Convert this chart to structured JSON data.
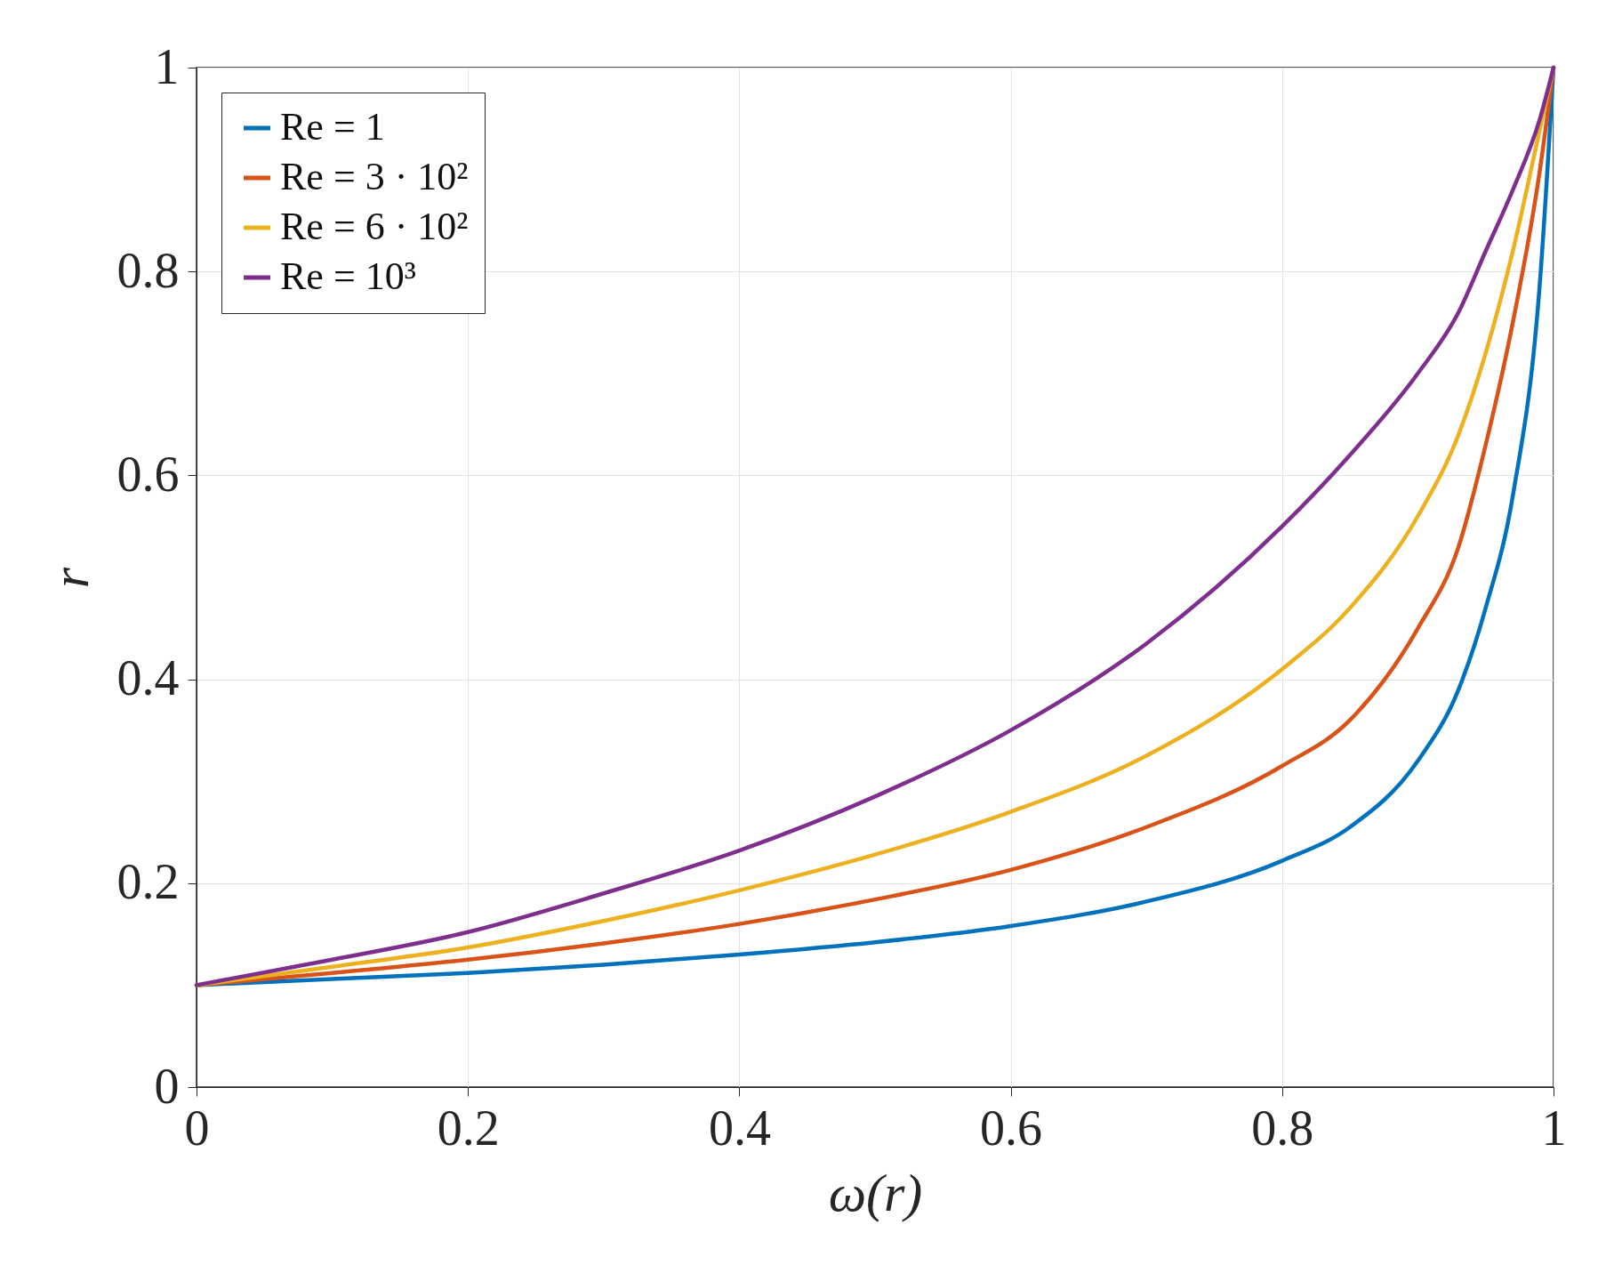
{
  "chart_data": {
    "type": "line",
    "xlabel": "ω(r)",
    "ylabel": "r",
    "xlim": [
      0,
      1
    ],
    "ylim": [
      0,
      1
    ],
    "xticks": [
      0,
      0.2,
      0.4,
      0.6,
      0.8,
      1
    ],
    "yticks": [
      0,
      0.2,
      0.4,
      0.6,
      0.8,
      1
    ],
    "grid": true,
    "legend": "top left",
    "line_style": "solid",
    "marker": "none",
    "x": [
      0,
      0.1,
      0.2,
      0.3,
      0.4,
      0.5,
      0.6,
      0.7,
      0.8,
      0.85,
      0.9,
      0.93,
      0.95,
      0.97,
      0.99,
      1
    ],
    "series": [
      {
        "name": "Re = 1",
        "color": "#0072bd",
        "values": [
          0.1,
          0.106,
          0.112,
          0.12,
          0.13,
          0.142,
          0.158,
          0.182,
          0.222,
          0.255,
          0.32,
          0.39,
          0.47,
          0.58,
          0.79,
          1
        ]
      },
      {
        "name": "Re = 3 · 10²",
        "color": "#d95319",
        "values": [
          0.1,
          0.112,
          0.125,
          0.141,
          0.16,
          0.184,
          0.213,
          0.255,
          0.315,
          0.36,
          0.45,
          0.53,
          0.63,
          0.75,
          0.9,
          1
        ]
      },
      {
        "name": "Re = 6 · 10²",
        "color": "#edb120",
        "values": [
          0.1,
          0.118,
          0.137,
          0.163,
          0.193,
          0.228,
          0.27,
          0.325,
          0.41,
          0.47,
          0.56,
          0.64,
          0.72,
          0.82,
          0.94,
          1
        ]
      },
      {
        "name": "Re = 10³",
        "color": "#7e2f8e",
        "values": [
          0.1,
          0.125,
          0.152,
          0.19,
          0.232,
          0.285,
          0.35,
          0.435,
          0.55,
          0.62,
          0.7,
          0.76,
          0.82,
          0.88,
          0.95,
          1
        ]
      }
    ]
  }
}
